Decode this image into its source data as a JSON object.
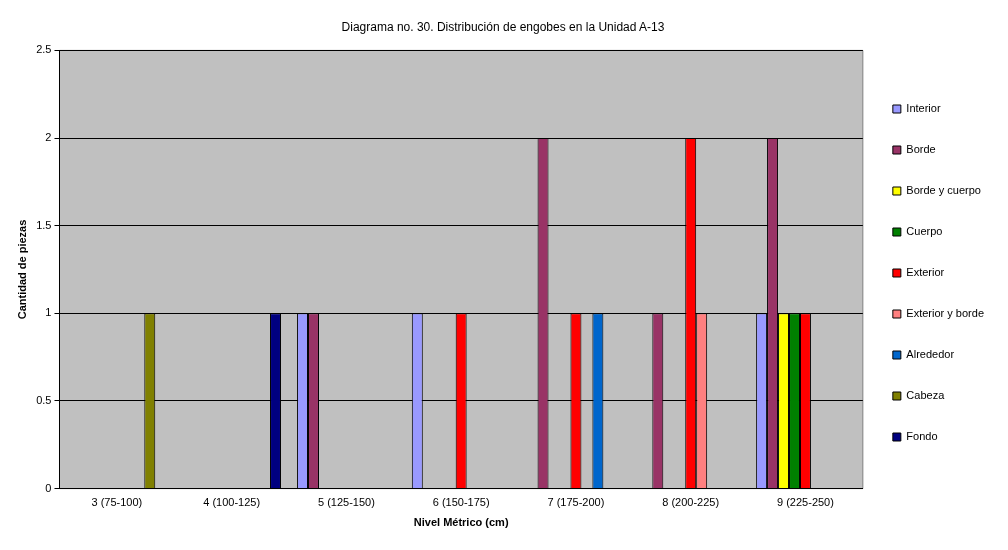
{
  "chart_data": {
    "type": "bar",
    "title": "Diagrama no. 30. Distribución de engobes en la Unidad A-13",
    "xlabel": "Nivel Métrico (cm)",
    "ylabel": "Cantidad de piezas",
    "categories": [
      "3 (75-100)",
      "4 (100-125)",
      "5 (125-150)",
      "6 (150-175)",
      "7 (175-200)",
      "8 (200-225)",
      "9 (225-250)"
    ],
    "series": [
      {
        "name": "Interior",
        "color": "#9999ff",
        "values": [
          null,
          null,
          1,
          1,
          null,
          null,
          1
        ]
      },
      {
        "name": "Borde",
        "color": "#993366",
        "values": [
          null,
          null,
          1,
          null,
          2,
          1,
          2
        ]
      },
      {
        "name": "Borde y cuerpo",
        "color": "#ffff00",
        "values": [
          null,
          null,
          null,
          null,
          null,
          null,
          1
        ]
      },
      {
        "name": "Cuerpo",
        "color": "#008000",
        "values": [
          null,
          null,
          null,
          null,
          null,
          null,
          1
        ]
      },
      {
        "name": "Exterior",
        "color": "#ff0000",
        "values": [
          null,
          null,
          null,
          1,
          1,
          2,
          1
        ]
      },
      {
        "name": "Exterior y borde",
        "color": "#ff8080",
        "values": [
          null,
          null,
          null,
          null,
          null,
          1,
          null
        ]
      },
      {
        "name": "Alrededor",
        "color": "#0066cc",
        "values": [
          null,
          null,
          null,
          null,
          1,
          null,
          null
        ]
      },
      {
        "name": "Cabeza",
        "color": "#808000",
        "values": [
          1,
          null,
          null,
          null,
          null,
          null,
          null
        ]
      },
      {
        "name": "Fondo",
        "color": "#000080",
        "values": [
          null,
          1,
          null,
          null,
          null,
          null,
          null
        ]
      }
    ],
    "ylim": [
      0,
      2.5
    ],
    "yticks": [
      0,
      0.5,
      1,
      1.5,
      2,
      2.5
    ],
    "grid": "y",
    "legend": "right"
  }
}
